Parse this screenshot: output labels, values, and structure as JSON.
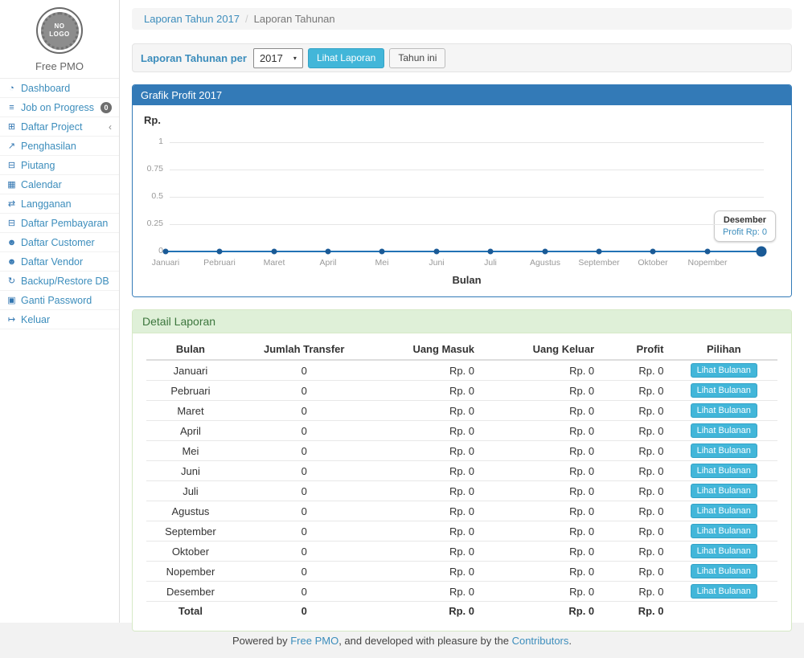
{
  "colors": {
    "accent": "#3c8dbc",
    "primary": "#337ab7",
    "info": "#42b6d9",
    "info-border": "#34a3c6",
    "line": "#2272b5",
    "point": "#1a5a96",
    "success-bg": "#dff0d8",
    "success-text": "#3c763d",
    "success-border": "#d6e9c6"
  },
  "brand": {
    "logo_line1": "NO",
    "logo_line2": "LOGO",
    "name": "Free PMO"
  },
  "sidebar": {
    "items": [
      {
        "icon": "dashboard-icon",
        "glyph": "◔",
        "label": "Dashboard"
      },
      {
        "icon": "tasks-icon",
        "glyph": "≡",
        "label": "Job on Progress",
        "badge": "0"
      },
      {
        "icon": "table-icon",
        "glyph": "⊞",
        "label": "Daftar Project",
        "chevron": "‹"
      },
      {
        "icon": "chart-line-icon",
        "glyph": "↗",
        "label": "Penghasilan"
      },
      {
        "icon": "money-icon",
        "glyph": "⊟",
        "label": "Piutang"
      },
      {
        "icon": "calendar-icon",
        "glyph": "▦",
        "label": "Calendar"
      },
      {
        "icon": "retweet-icon",
        "glyph": "⇄",
        "label": "Langganan"
      },
      {
        "icon": "money-icon",
        "glyph": "⊟",
        "label": "Daftar Pembayaran"
      },
      {
        "icon": "users-icon",
        "glyph": "☻",
        "label": "Daftar Customer"
      },
      {
        "icon": "users-icon",
        "glyph": "☻",
        "label": "Daftar Vendor"
      },
      {
        "icon": "refresh-icon",
        "glyph": "↻",
        "label": "Backup/Restore DB"
      },
      {
        "icon": "lock-icon",
        "glyph": "▣",
        "label": "Ganti Password"
      },
      {
        "icon": "sign-out-icon",
        "glyph": "↦",
        "label": "Keluar"
      }
    ]
  },
  "breadcrumb": {
    "link_label": "Laporan Tahun 2017",
    "separator": "/",
    "current": "Laporan Tahunan"
  },
  "filter": {
    "label": "Laporan Tahunan per",
    "year": "2017",
    "caret": "▾",
    "view_button": "Lihat Laporan",
    "this_year_button": "Tahun ini"
  },
  "chart_panel": {
    "title": "Grafik Profit 2017"
  },
  "chart_data": {
    "type": "line",
    "title": "Grafik Profit 2017",
    "xlabel": "Bulan",
    "ylabel": "Rp.",
    "x": [
      "Januari",
      "Pebruari",
      "Maret",
      "April",
      "Mei",
      "Juni",
      "Juli",
      "Agustus",
      "September",
      "Oktober",
      "Nopember",
      "Desember"
    ],
    "series": [
      {
        "name": "Profit",
        "values": [
          0,
          0,
          0,
          0,
          0,
          0,
          0,
          0,
          0,
          0,
          0,
          0
        ]
      }
    ],
    "ylim": [
      0,
      1
    ],
    "yticks": [
      "1",
      "0.75",
      "0.5",
      "0.25",
      "0"
    ],
    "grid": true,
    "legend": false,
    "tooltip": {
      "title": "Desember",
      "value": "Profit Rp: 0"
    }
  },
  "detail": {
    "title": "Detail Laporan",
    "columns": [
      "Bulan",
      "Jumlah Transfer",
      "Uang Masuk",
      "Uang Keluar",
      "Profit",
      "Pilihan"
    ],
    "action_label": "Lihat Bulanan",
    "rows": [
      [
        "Januari",
        "0",
        "Rp. 0",
        "Rp. 0",
        "Rp. 0"
      ],
      [
        "Pebruari",
        "0",
        "Rp. 0",
        "Rp. 0",
        "Rp. 0"
      ],
      [
        "Maret",
        "0",
        "Rp. 0",
        "Rp. 0",
        "Rp. 0"
      ],
      [
        "April",
        "0",
        "Rp. 0",
        "Rp. 0",
        "Rp. 0"
      ],
      [
        "Mei",
        "0",
        "Rp. 0",
        "Rp. 0",
        "Rp. 0"
      ],
      [
        "Juni",
        "0",
        "Rp. 0",
        "Rp. 0",
        "Rp. 0"
      ],
      [
        "Juli",
        "0",
        "Rp. 0",
        "Rp. 0",
        "Rp. 0"
      ],
      [
        "Agustus",
        "0",
        "Rp. 0",
        "Rp. 0",
        "Rp. 0"
      ],
      [
        "September",
        "0",
        "Rp. 0",
        "Rp. 0",
        "Rp. 0"
      ],
      [
        "Oktober",
        "0",
        "Rp. 0",
        "Rp. 0",
        "Rp. 0"
      ],
      [
        "Nopember",
        "0",
        "Rp. 0",
        "Rp. 0",
        "Rp. 0"
      ],
      [
        "Desember",
        "0",
        "Rp. 0",
        "Rp. 0",
        "Rp. 0"
      ]
    ],
    "total_row": [
      "Total",
      "0",
      "Rp. 0",
      "Rp. 0",
      "Rp. 0",
      ""
    ]
  },
  "footer": {
    "prefix": "Powered by ",
    "link1": "Free PMO",
    "middle": ", and developed with pleasure by the ",
    "link2": "Contributors",
    "suffix": "."
  }
}
